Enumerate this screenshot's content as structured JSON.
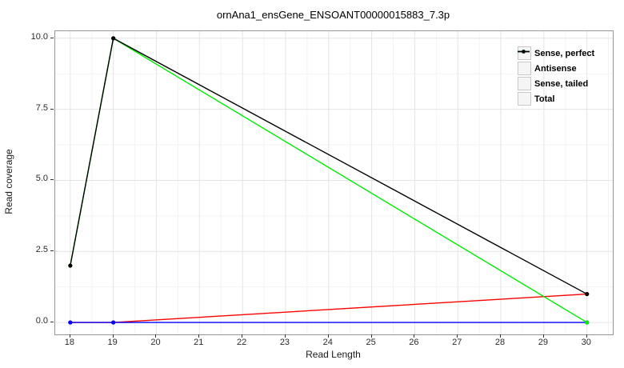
{
  "chart_data": {
    "type": "line",
    "title": "ornAna1_ensGene_ENSOANT00000015883_7.3p",
    "xlabel": "Read Length",
    "ylabel": "Read coverage",
    "x": [
      18,
      19,
      30
    ],
    "series": [
      {
        "name": "Sense, perfect",
        "color": "#ff0000",
        "values": [
          0,
          0,
          1
        ]
      },
      {
        "name": "Antisense",
        "color": "#0000ff",
        "values": [
          0,
          0,
          0
        ]
      },
      {
        "name": "Sense, tailed",
        "color": "#00ee00",
        "values": [
          2,
          10,
          0
        ]
      },
      {
        "name": "Total",
        "color": "#000000",
        "values": [
          2,
          10,
          1
        ]
      }
    ],
    "x_ticks": [
      18,
      19,
      20,
      21,
      22,
      23,
      24,
      25,
      26,
      27,
      28,
      29,
      30
    ],
    "y_ticks": [
      {
        "v": 0,
        "label": "0.0"
      },
      {
        "v": 2.5,
        "label": "2.5"
      },
      {
        "v": 5,
        "label": "5.0"
      },
      {
        "v": 7.5,
        "label": "7.5"
      },
      {
        "v": 10,
        "label": "10.0"
      }
    ],
    "xlim": [
      17.65,
      30.6
    ],
    "ylim": [
      -0.42,
      10.25
    ],
    "grid": "major+minor",
    "legend_position": "top-right",
    "grid_major_color": "#e4e4e4",
    "grid_minor_color": "#f3f3f3"
  }
}
